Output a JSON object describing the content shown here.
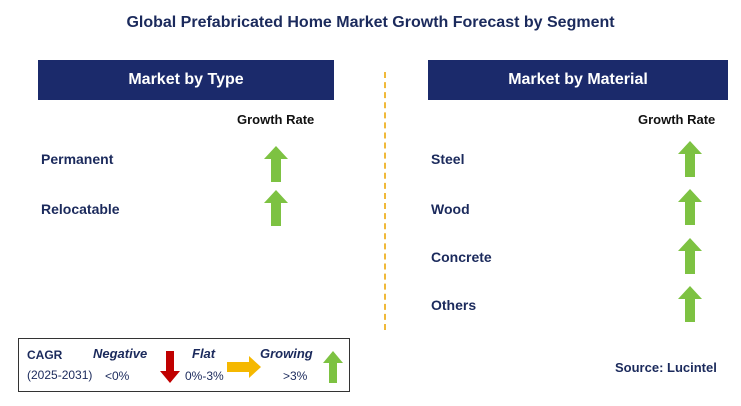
{
  "title": "Global Prefabricated Home Market Growth Forecast by Segment",
  "left_panel": {
    "header": "Market by Type",
    "growth_label": "Growth Rate",
    "segments": [
      {
        "label": "Permanent",
        "trend": "growing"
      },
      {
        "label": "Relocatable",
        "trend": "growing"
      }
    ]
  },
  "right_panel": {
    "header": "Market by Material",
    "growth_label": "Growth Rate",
    "segments": [
      {
        "label": "Steel",
        "trend": "growing"
      },
      {
        "label": "Wood",
        "trend": "growing"
      },
      {
        "label": "Concrete",
        "trend": "growing"
      },
      {
        "label": "Others",
        "trend": "growing"
      }
    ]
  },
  "legend": {
    "cagr": "CAGR",
    "period": "(2025-2031)",
    "negative_label": "Negative",
    "negative_value": "<0%",
    "flat_label": "Flat",
    "flat_value": "0%-3%",
    "growing_label": "Growing",
    "growing_value": ">3%"
  },
  "source": "Source: Lucintel",
  "colors": {
    "header_bg": "#1b2a6b",
    "text_navy": "#1b2a5c",
    "growing": "#7dc242",
    "negative": "#c00000",
    "flat": "#f5b800",
    "divider": "#f0b93a"
  }
}
